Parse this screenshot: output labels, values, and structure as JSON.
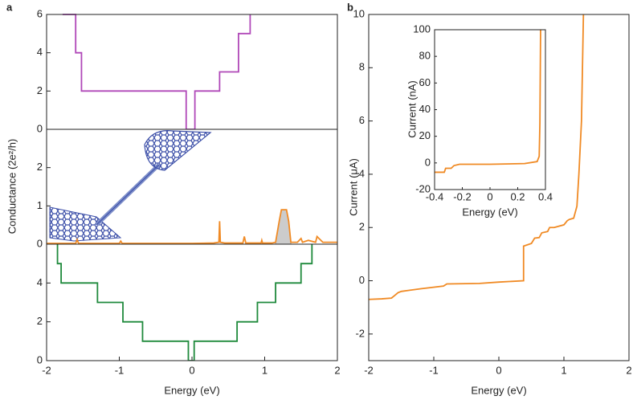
{
  "chart_data": [
    {
      "type": "line",
      "panel_label": "a",
      "xlim": [
        -2,
        2
      ],
      "ylim": [
        0,
        6
      ],
      "yticks": [
        0,
        2,
        4,
        6
      ],
      "series": [
        {
          "color": "#b048b8",
          "x": [
            -1.78,
            -1.6,
            -1.6,
            -1.52,
            -1.52,
            -0.08,
            -0.08,
            0.04,
            0.04,
            0.38,
            0.38,
            0.64,
            0.64,
            0.8,
            0.8
          ],
          "values": [
            6,
            6,
            4,
            4,
            2,
            2,
            0,
            0,
            2,
            2,
            3,
            3,
            5,
            5,
            6
          ]
        }
      ]
    },
    {
      "type": "line",
      "ylabel": "Conductance (2e²/h)",
      "xlim": [
        -2,
        2
      ],
      "ylim": [
        0,
        3
      ],
      "yticks": [
        0,
        1,
        2
      ],
      "series": [
        {
          "color": "#999999",
          "fill": "#cccccc",
          "x": [
            1.15,
            1.2,
            1.23,
            1.3,
            1.33,
            1.36
          ],
          "values": [
            0.05,
            0.6,
            0.9,
            0.9,
            0.6,
            0.05
          ]
        },
        {
          "color": "#f08a24",
          "x": [
            -2,
            -1.6,
            -1.58,
            -1.56,
            -1,
            -0.98,
            -0.96,
            0,
            0.3,
            0.37,
            0.38,
            0.39,
            0.45,
            0.7,
            0.72,
            0.74,
            0.95,
            0.96,
            0.97,
            1.1,
            1.15,
            1.2,
            1.23,
            1.3,
            1.33,
            1.36,
            1.45,
            1.5,
            1.52,
            1.6,
            1.7,
            1.72,
            1.8,
            2
          ],
          "values": [
            0.02,
            0.02,
            0.12,
            0.02,
            0.02,
            0.08,
            0.02,
            0.02,
            0.03,
            0.05,
            0.6,
            0.05,
            0.03,
            0.03,
            0.2,
            0.03,
            0.03,
            0.1,
            0.03,
            0.03,
            0.05,
            0.6,
            0.9,
            0.9,
            0.6,
            0.05,
            0.05,
            0.15,
            0.05,
            0.1,
            0.05,
            0.2,
            0.05,
            0.05
          ]
        }
      ]
    },
    {
      "type": "line",
      "xlabel": "Energy (eV)",
      "xlim": [
        -2,
        2
      ],
      "xticks": [
        -2,
        -1,
        0,
        1,
        2
      ],
      "ylim": [
        0,
        6
      ],
      "yticks": [
        0,
        2,
        4
      ],
      "series": [
        {
          "color": "#1f8a3c",
          "x": [
            -1.85,
            -1.85,
            -1.8,
            -1.8,
            -1.3,
            -1.3,
            -0.95,
            -0.95,
            -0.68,
            -0.68,
            -0.05,
            -0.05,
            0.03,
            0.03,
            0.62,
            0.62,
            0.9,
            0.9,
            1.15,
            1.15,
            1.5,
            1.5,
            1.65,
            1.65
          ],
          "values": [
            6,
            5,
            5,
            4,
            4,
            3,
            3,
            2,
            2,
            1,
            1,
            0,
            0,
            1,
            1,
            2,
            2,
            3,
            3,
            4,
            4,
            5,
            5,
            6
          ]
        }
      ]
    },
    {
      "type": "line",
      "panel_label": "b",
      "xlabel": "Energy (eV)",
      "ylabel": "Current (μA)",
      "xlim": [
        -2,
        2
      ],
      "xticks": [
        -2,
        -1,
        0,
        1,
        2
      ],
      "ylim": [
        -3,
        10
      ],
      "yticks": [
        -2,
        0,
        2,
        4,
        6,
        8,
        10
      ],
      "series": [
        {
          "color": "#f08a24",
          "x": [
            -2,
            -1.8,
            -1.65,
            -1.6,
            -1.55,
            -1.5,
            -1.2,
            -0.85,
            -0.8,
            -0.3,
            0,
            0.38,
            0.38,
            0.5,
            0.55,
            0.62,
            0.66,
            0.75,
            0.78,
            0.85,
            1.0,
            1.05,
            1.08,
            1.15,
            1.2,
            1.23,
            1.27,
            1.3
          ],
          "values": [
            -0.7,
            -0.68,
            -0.65,
            -0.55,
            -0.45,
            -0.4,
            -0.3,
            -0.2,
            -0.12,
            -0.1,
            -0.05,
            0,
            1.3,
            1.4,
            1.6,
            1.62,
            1.8,
            1.85,
            2.0,
            2.0,
            2.1,
            2.25,
            2.3,
            2.35,
            2.8,
            4,
            6,
            10
          ]
        }
      ]
    },
    {
      "type": "line",
      "xlabel": "Energy (eV)",
      "ylabel": "Current (nA)",
      "xlim": [
        -0.4,
        0.4
      ],
      "xticks": [
        -0.4,
        -0.2,
        0,
        0.2,
        0.4
      ],
      "ylim": [
        -20,
        100
      ],
      "yticks": [
        -20,
        0,
        20,
        40,
        60,
        80,
        100
      ],
      "series": [
        {
          "color": "#f08a24",
          "x": [
            -0.4,
            -0.33,
            -0.32,
            -0.28,
            -0.26,
            -0.22,
            0,
            0.25,
            0.34,
            0.355,
            0.36,
            0.365
          ],
          "values": [
            -7,
            -7,
            -4,
            -4,
            -2,
            -1,
            -1,
            -0.5,
            1,
            5,
            30,
            100
          ]
        }
      ]
    }
  ]
}
